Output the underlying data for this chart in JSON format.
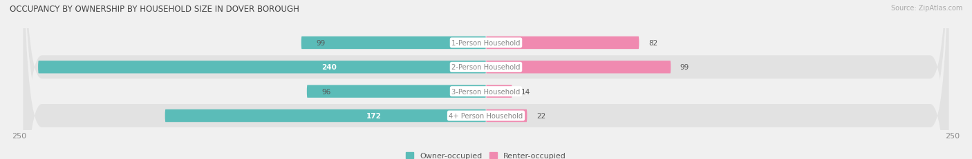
{
  "title": "OCCUPANCY BY OWNERSHIP BY HOUSEHOLD SIZE IN DOVER BOROUGH",
  "source": "Source: ZipAtlas.com",
  "categories": [
    "1-Person Household",
    "2-Person Household",
    "3-Person Household",
    "4+ Person Household"
  ],
  "owner_values": [
    99,
    240,
    96,
    172
  ],
  "renter_values": [
    82,
    99,
    14,
    22
  ],
  "axis_max": 250,
  "owner_color": "#5bbcb8",
  "renter_color": "#f08ab0",
  "row_bg_odd": "#f0f0f0",
  "row_bg_even": "#e2e2e2",
  "fig_bg": "#f0f0f0",
  "label_dark": "#555555",
  "label_white": "#ffffff",
  "center_label_bg": "#ffffff",
  "center_label_color": "#888888",
  "title_color": "#444444",
  "source_color": "#aaaaaa",
  "axis_label_color": "#888888",
  "bar_height": 0.52,
  "legend_owner": "Owner-occupied",
  "legend_renter": "Renter-occupied",
  "white_label_threshold": 130
}
